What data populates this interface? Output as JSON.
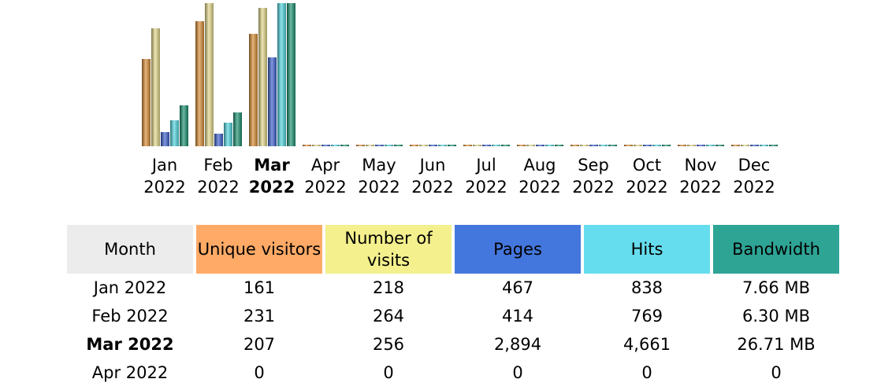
{
  "chart_data": {
    "type": "bar",
    "categories": [
      {
        "month": "Jan",
        "year": "2022"
      },
      {
        "month": "Feb",
        "year": "2022"
      },
      {
        "month": "Mar",
        "year": "2022"
      },
      {
        "month": "Apr",
        "year": "2022"
      },
      {
        "month": "May",
        "year": "2022"
      },
      {
        "month": "Jun",
        "year": "2022"
      },
      {
        "month": "Jul",
        "year": "2022"
      },
      {
        "month": "Aug",
        "year": "2022"
      },
      {
        "month": "Sep",
        "year": "2022"
      },
      {
        "month": "Oct",
        "year": "2022"
      },
      {
        "month": "Nov",
        "year": "2022"
      },
      {
        "month": "Dec",
        "year": "2022"
      }
    ],
    "current_month_index": 2,
    "series": [
      {
        "key": "unique_visitors",
        "color": "#d98c33",
        "values": [
          161,
          231,
          207,
          0,
          0,
          0,
          0,
          0,
          0,
          0,
          0,
          0
        ]
      },
      {
        "key": "visits",
        "color": "#e3d98a",
        "values": [
          218,
          264,
          256,
          0,
          0,
          0,
          0,
          0,
          0,
          0,
          0,
          0
        ]
      },
      {
        "key": "pages",
        "color": "#3a5fcd",
        "values": [
          467,
          414,
          2894,
          0,
          0,
          0,
          0,
          0,
          0,
          0,
          0,
          0
        ]
      },
      {
        "key": "hits",
        "color": "#4fd6e0",
        "values": [
          838,
          769,
          4661,
          0,
          0,
          0,
          0,
          0,
          0,
          0,
          0,
          0
        ]
      },
      {
        "key": "bandwidth_mb",
        "color": "#1a9070",
        "values": [
          7.66,
          6.3,
          26.71,
          0,
          0,
          0,
          0,
          0,
          0,
          0,
          0,
          0
        ]
      }
    ],
    "scale_groups": [
      [
        "unique_visitors",
        "visits"
      ],
      [
        "pages",
        "hits"
      ],
      [
        "bandwidth_mb"
      ]
    ]
  },
  "table": {
    "headers": {
      "month": "Month",
      "unique_visitors": "Unique visitors",
      "visits": "Number of visits",
      "pages": "Pages",
      "hits": "Hits",
      "bandwidth": "Bandwidth"
    },
    "rows": [
      {
        "month": "Jan 2022",
        "unique_visitors": "161",
        "visits": "218",
        "pages": "467",
        "hits": "838",
        "bandwidth": "7.66 MB"
      },
      {
        "month": "Feb 2022",
        "unique_visitors": "231",
        "visits": "264",
        "pages": "414",
        "hits": "769",
        "bandwidth": "6.30 MB"
      },
      {
        "month": "Mar 2022",
        "unique_visitors": "207",
        "visits": "256",
        "pages": "2,894",
        "hits": "4,661",
        "bandwidth": "26.71 MB"
      },
      {
        "month": "Apr 2022",
        "unique_visitors": "0",
        "visits": "0",
        "pages": "0",
        "hits": "0",
        "bandwidth": "0"
      }
    ]
  }
}
